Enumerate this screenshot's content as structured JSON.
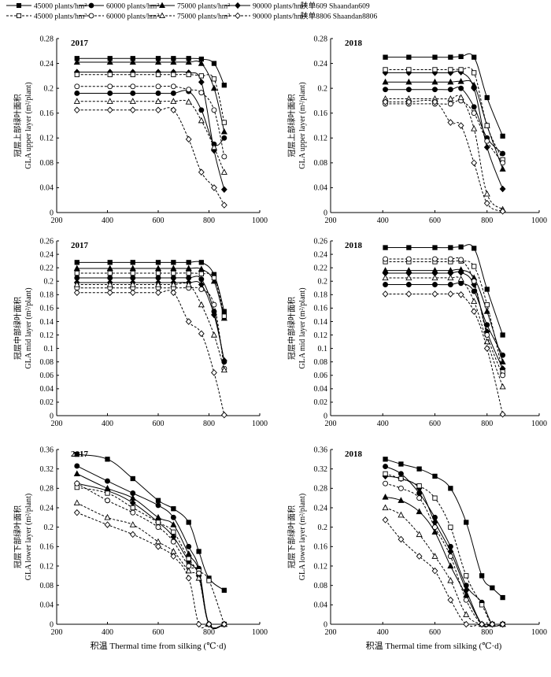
{
  "legend": {
    "entries": [
      {
        "label": "45000 plants/hm²",
        "marker": "square",
        "fill": "filled",
        "dash": "solid"
      },
      {
        "label": "60000 plants/hm²",
        "marker": "circle",
        "fill": "filled",
        "dash": "solid"
      },
      {
        "label": "75000 plants/hm²",
        "marker": "triangle",
        "fill": "filled",
        "dash": "solid"
      },
      {
        "label": "90000 plants/hm²",
        "marker": "diamond",
        "fill": "filled",
        "dash": "solid"
      },
      {
        "label": "45000 plants/hm²",
        "marker": "square",
        "fill": "open",
        "dash": "dashed"
      },
      {
        "label": "60000 plants/hm²",
        "marker": "circle",
        "fill": "open",
        "dash": "dashed"
      },
      {
        "label": "75000 plants/hm²",
        "marker": "triangle",
        "fill": "open",
        "dash": "dashed"
      },
      {
        "label": "90000 plants/hm²",
        "marker": "diamond",
        "fill": "open",
        "dash": "dashed"
      }
    ],
    "cultivar_solid": "陕单609  Shaandan609",
    "cultivar_dashed": "陕单8806  Shaandan8806"
  },
  "xlabel_cn": "积温",
  "xlabel_en": "Thermal time from silking (℃·d)",
  "colors": {
    "line": "#000000",
    "open_fill": "#ffffff",
    "grid": "none"
  },
  "chart_data": [
    {
      "type": "line",
      "year": "2017",
      "ylabel_cn": "冠层上部绿叶面积",
      "ylabel_en": "GLA upper layer (m²/plant)",
      "xlim": [
        200,
        1000
      ],
      "xticks": [
        200,
        400,
        600,
        800,
        1000
      ],
      "ylim": [
        0,
        0.28
      ],
      "yticks": [
        0,
        0.04,
        0.08,
        0.12,
        0.16,
        0.2,
        0.24,
        0.28
      ],
      "x": [
        280,
        410,
        500,
        600,
        660,
        720,
        770,
        820,
        860
      ],
      "series": [
        {
          "name": "45000 plants/hm² Shaandan609",
          "values": [
            0.248,
            0.248,
            0.248,
            0.248,
            0.248,
            0.248,
            0.247,
            0.24,
            0.205
          ]
        },
        {
          "name": "60000 plants/hm² Shaandan609",
          "values": [
            0.192,
            0.192,
            0.192,
            0.192,
            0.192,
            0.195,
            0.165,
            0.11,
            0.12
          ]
        },
        {
          "name": "75000 plants/hm² Shaandan609",
          "values": [
            0.242,
            0.242,
            0.242,
            0.242,
            0.242,
            0.242,
            0.24,
            0.2,
            0.13
          ]
        },
        {
          "name": "90000 plants/hm² Shaandan609",
          "values": [
            0.226,
            0.226,
            0.226,
            0.226,
            0.226,
            0.225,
            0.21,
            0.1,
            0.037
          ]
        },
        {
          "name": "45000 plants/hm² Shaandan8806",
          "values": [
            0.222,
            0.222,
            0.222,
            0.222,
            0.222,
            0.222,
            0.22,
            0.215,
            0.145
          ]
        },
        {
          "name": "60000 plants/hm² Shaandan8806",
          "values": [
            0.203,
            0.203,
            0.203,
            0.203,
            0.203,
            0.198,
            0.193,
            0.165,
            0.09
          ]
        },
        {
          "name": "75000 plants/hm² Shaandan8806",
          "values": [
            0.179,
            0.179,
            0.179,
            0.179,
            0.179,
            0.178,
            0.148,
            0.105,
            0.065
          ]
        },
        {
          "name": "90000 plants/hm² Shaandan8806",
          "values": [
            0.165,
            0.165,
            0.165,
            0.165,
            0.165,
            0.118,
            0.065,
            0.04,
            0.012
          ]
        }
      ]
    },
    {
      "type": "line",
      "year": "2018",
      "ylabel_cn": "冠层上部绿叶面积",
      "ylabel_en": "GLA upper layer (m²/plant)",
      "xlim": [
        200,
        1000
      ],
      "xticks": [
        200,
        400,
        600,
        800,
        1000
      ],
      "ylim": [
        0,
        0.28
      ],
      "yticks": [
        0,
        0.04,
        0.08,
        0.12,
        0.16,
        0.2,
        0.24,
        0.28
      ],
      "x": [
        410,
        500,
        600,
        660,
        700,
        750,
        800,
        860
      ],
      "series": [
        {
          "name": "45000 plants/hm² Shaandan609",
          "values": [
            0.25,
            0.25,
            0.25,
            0.25,
            0.251,
            0.25,
            0.185,
            0.123
          ]
        },
        {
          "name": "60000 plants/hm² Shaandan609",
          "values": [
            0.198,
            0.198,
            0.198,
            0.198,
            0.2,
            0.17,
            0.12,
            0.095
          ]
        },
        {
          "name": "75000 plants/hm² Shaandan609",
          "values": [
            0.21,
            0.21,
            0.21,
            0.21,
            0.211,
            0.205,
            0.14,
            0.07
          ]
        },
        {
          "name": "90000 plants/hm² Shaandan609",
          "values": [
            0.225,
            0.225,
            0.225,
            0.225,
            0.226,
            0.2,
            0.105,
            0.038
          ]
        },
        {
          "name": "45000 plants/hm² Shaandan8806",
          "values": [
            0.23,
            0.23,
            0.23,
            0.23,
            0.23,
            0.225,
            0.14,
            0.085
          ]
        },
        {
          "name": "60000 plants/hm² Shaandan8806",
          "values": [
            0.175,
            0.175,
            0.175,
            0.175,
            0.18,
            0.16,
            0.115,
            0.08
          ]
        },
        {
          "name": "75000 plants/hm² Shaandan8806",
          "values": [
            0.183,
            0.183,
            0.183,
            0.183,
            0.185,
            0.135,
            0.03,
            0.005
          ]
        },
        {
          "name": "90000 plants/hm² Shaandan8806",
          "values": [
            0.178,
            0.178,
            0.178,
            0.145,
            0.14,
            0.08,
            0.015,
            0.002
          ]
        }
      ]
    },
    {
      "type": "line",
      "year": "2017",
      "ylabel_cn": "冠层中部绿叶面积",
      "ylabel_en": "GLA mid layer (m²/plant)",
      "xlim": [
        200,
        1000
      ],
      "xticks": [
        200,
        400,
        600,
        800,
        1000
      ],
      "ylim": [
        0,
        0.26
      ],
      "yticks": [
        0,
        0.02,
        0.04,
        0.06,
        0.08,
        0.1,
        0.12,
        0.14,
        0.16,
        0.18,
        0.2,
        0.22,
        0.24,
        0.26
      ],
      "x": [
        280,
        410,
        500,
        600,
        660,
        720,
        770,
        820,
        860
      ],
      "series": [
        {
          "name": "45000 plants/hm² Shaandan609",
          "values": [
            0.228,
            0.228,
            0.228,
            0.228,
            0.228,
            0.228,
            0.228,
            0.21,
            0.155
          ]
        },
        {
          "name": "60000 plants/hm² Shaandan609",
          "values": [
            0.205,
            0.205,
            0.205,
            0.205,
            0.205,
            0.205,
            0.203,
            0.155,
            0.08
          ]
        },
        {
          "name": "75000 plants/hm² Shaandan609",
          "values": [
            0.219,
            0.219,
            0.219,
            0.219,
            0.219,
            0.219,
            0.218,
            0.2,
            0.145
          ]
        },
        {
          "name": "90000 plants/hm² Shaandan609",
          "values": [
            0.198,
            0.198,
            0.198,
            0.198,
            0.198,
            0.198,
            0.195,
            0.15,
            0.082
          ]
        },
        {
          "name": "45000 plants/hm² Shaandan8806",
          "values": [
            0.212,
            0.212,
            0.212,
            0.212,
            0.212,
            0.212,
            0.211,
            0.205,
            0.148
          ]
        },
        {
          "name": "60000 plants/hm² Shaandan8806",
          "values": [
            0.19,
            0.19,
            0.19,
            0.19,
            0.19,
            0.19,
            0.188,
            0.165,
            0.07
          ]
        },
        {
          "name": "75000 plants/hm² Shaandan8806",
          "values": [
            0.195,
            0.195,
            0.195,
            0.195,
            0.195,
            0.195,
            0.165,
            0.12,
            0.068
          ]
        },
        {
          "name": "90000 plants/hm² Shaandan8806",
          "values": [
            0.183,
            0.183,
            0.183,
            0.183,
            0.183,
            0.14,
            0.122,
            0.064,
            0.001
          ]
        }
      ]
    },
    {
      "type": "line",
      "year": "2018",
      "ylabel_cn": "冠层中部绿叶面积",
      "ylabel_en": "GLA mid layer (m²/plant)",
      "xlim": [
        200,
        1000
      ],
      "xticks": [
        200,
        400,
        600,
        800,
        1000
      ],
      "ylim": [
        0,
        0.26
      ],
      "yticks": [
        0,
        0.02,
        0.04,
        0.06,
        0.08,
        0.1,
        0.12,
        0.14,
        0.16,
        0.18,
        0.2,
        0.22,
        0.24,
        0.26
      ],
      "x": [
        410,
        500,
        600,
        660,
        700,
        750,
        800,
        860
      ],
      "series": [
        {
          "name": "45000 plants/hm² Shaandan609",
          "values": [
            0.25,
            0.25,
            0.25,
            0.25,
            0.251,
            0.249,
            0.188,
            0.12
          ]
        },
        {
          "name": "60000 plants/hm² Shaandan609",
          "values": [
            0.195,
            0.195,
            0.195,
            0.195,
            0.197,
            0.185,
            0.135,
            0.09
          ]
        },
        {
          "name": "75000 plants/hm² Shaandan609",
          "values": [
            0.216,
            0.216,
            0.216,
            0.216,
            0.217,
            0.205,
            0.155,
            0.08
          ]
        },
        {
          "name": "90000 plants/hm² Shaandan609",
          "values": [
            0.212,
            0.212,
            0.212,
            0.212,
            0.213,
            0.195,
            0.125,
            0.07
          ]
        },
        {
          "name": "45000 plants/hm² Shaandan8806",
          "values": [
            0.229,
            0.229,
            0.229,
            0.229,
            0.23,
            0.222,
            0.165,
            0.065
          ]
        },
        {
          "name": "60000 plants/hm² Shaandan8806",
          "values": [
            0.233,
            0.233,
            0.233,
            0.233,
            0.232,
            0.2,
            0.12,
            0.06
          ]
        },
        {
          "name": "75000 plants/hm² Shaandan8806",
          "values": [
            0.205,
            0.205,
            0.205,
            0.205,
            0.203,
            0.17,
            0.11,
            0.043
          ]
        },
        {
          "name": "90000 plants/hm² Shaandan8806",
          "values": [
            0.181,
            0.181,
            0.181,
            0.181,
            0.18,
            0.155,
            0.1,
            0.002
          ]
        }
      ]
    },
    {
      "type": "line",
      "year": "2017",
      "ylabel_cn": "冠层下部绿叶面积",
      "ylabel_en": "GLA lower layer (m²/plant)",
      "xlim": [
        200,
        1000
      ],
      "xticks": [
        200,
        400,
        600,
        800,
        1000
      ],
      "ylim": [
        0,
        0.36
      ],
      "yticks": [
        0,
        0.04,
        0.08,
        0.12,
        0.16,
        0.2,
        0.24,
        0.28,
        0.32,
        0.36
      ],
      "x": [
        280,
        400,
        500,
        600,
        660,
        720,
        760,
        800,
        860
      ],
      "series": [
        {
          "name": "45000 plants/hm² Shaandan609",
          "values": [
            0.35,
            0.34,
            0.3,
            0.255,
            0.238,
            0.21,
            0.15,
            0.095,
            0.07
          ]
        },
        {
          "name": "60000 plants/hm² Shaandan609",
          "values": [
            0.326,
            0.295,
            0.27,
            0.245,
            0.22,
            0.16,
            0.115,
            0.0,
            0.0
          ]
        },
        {
          "name": "75000 plants/hm² Shaandan609",
          "values": [
            0.31,
            0.28,
            0.26,
            0.22,
            0.205,
            0.145,
            0.11,
            0.0,
            0.0
          ]
        },
        {
          "name": "90000 plants/hm² Shaandan609",
          "values": [
            0.29,
            0.275,
            0.25,
            0.21,
            0.18,
            0.13,
            0.1,
            0.0,
            0.0
          ]
        },
        {
          "name": "45000 plants/hm² Shaandan8806",
          "values": [
            0.282,
            0.27,
            0.24,
            0.21,
            0.19,
            0.135,
            0.11,
            0.09,
            0.0
          ]
        },
        {
          "name": "60000 plants/hm² Shaandan8806",
          "values": [
            0.29,
            0.255,
            0.23,
            0.2,
            0.17,
            0.12,
            0.105,
            0.0,
            0.0
          ]
        },
        {
          "name": "75000 plants/hm² Shaandan8806",
          "values": [
            0.25,
            0.22,
            0.205,
            0.17,
            0.15,
            0.11,
            0.095,
            0.0,
            0.0
          ]
        },
        {
          "name": "90000 plants/hm² Shaandan8806",
          "values": [
            0.23,
            0.205,
            0.185,
            0.16,
            0.14,
            0.095,
            0.0,
            0.0,
            0.0
          ]
        }
      ]
    },
    {
      "type": "line",
      "year": "2018",
      "ylabel_cn": "冠层下部绿叶面积",
      "ylabel_en": "GLA lower layer (m²/plant)",
      "xlim": [
        200,
        1000
      ],
      "xticks": [
        200,
        400,
        600,
        800,
        1000
      ],
      "ylim": [
        0,
        0.36
      ],
      "yticks": [
        0,
        0.04,
        0.08,
        0.12,
        0.16,
        0.2,
        0.24,
        0.28,
        0.32,
        0.36
      ],
      "x": [
        410,
        470,
        540,
        600,
        660,
        720,
        780,
        820,
        860
      ],
      "series": [
        {
          "name": "45000 plants/hm² Shaandan609",
          "values": [
            0.34,
            0.33,
            0.32,
            0.305,
            0.28,
            0.21,
            0.1,
            0.075,
            0.055
          ]
        },
        {
          "name": "60000 plants/hm² Shaandan609",
          "values": [
            0.325,
            0.31,
            0.27,
            0.22,
            0.16,
            0.08,
            0.045,
            0.0,
            0.0
          ]
        },
        {
          "name": "75000 plants/hm² Shaandan609",
          "values": [
            0.262,
            0.255,
            0.232,
            0.19,
            0.12,
            0.06,
            0.0,
            0.0,
            0.0
          ]
        },
        {
          "name": "90000 plants/hm² Shaandan609",
          "values": [
            0.305,
            0.3,
            0.28,
            0.21,
            0.15,
            0.07,
            0.0,
            0.0,
            0.0
          ]
        },
        {
          "name": "45000 plants/hm² Shaandan8806",
          "values": [
            0.31,
            0.3,
            0.285,
            0.26,
            0.2,
            0.1,
            0.04,
            0.0,
            0.0
          ]
        },
        {
          "name": "60000 plants/hm² Shaandan8806",
          "values": [
            0.29,
            0.28,
            0.26,
            0.2,
            0.14,
            0.05,
            0.0,
            0.0,
            0.0
          ]
        },
        {
          "name": "75000 plants/hm² Shaandan8806",
          "values": [
            0.24,
            0.225,
            0.185,
            0.14,
            0.09,
            0.02,
            0.0,
            0.0,
            0.0
          ]
        },
        {
          "name": "90000 plants/hm² Shaandan8806",
          "values": [
            0.215,
            0.175,
            0.14,
            0.11,
            0.05,
            0.0,
            0.0,
            0.0,
            0.0
          ]
        }
      ]
    }
  ]
}
